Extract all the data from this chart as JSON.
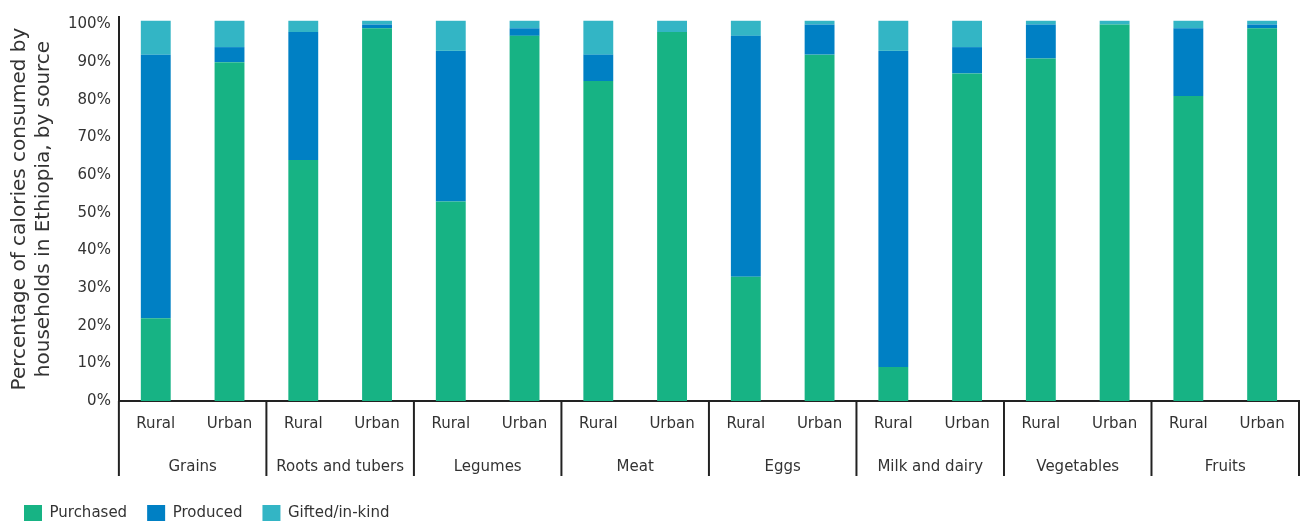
{
  "chart_data": {
    "type": "bar",
    "stacked": true,
    "ylabel": "Percentage of calories consumed by households in Ethiopia, by source",
    "categories": [
      "Rural",
      "Urban",
      "Rural",
      "Urban",
      "Rural",
      "Urban",
      "Rural",
      "Urban",
      "Rural",
      "Urban",
      "Rural",
      "Urban",
      "Rural",
      "Urban",
      "Rural",
      "Urban"
    ],
    "annotations": [
      "Grains",
      "Roots and tubers",
      "Legumes",
      "Meat",
      "Eggs",
      "Milk and dairy",
      "Vegetables",
      "Fruits"
    ],
    "series": [
      {
        "name": "Purchased",
        "color": "#17b384",
        "values": [
          22,
          90,
          64,
          99,
          53,
          97,
          85,
          98,
          33,
          92,
          9,
          87,
          91,
          100,
          81,
          99
        ]
      },
      {
        "name": "Produced",
        "color": "#0080c4",
        "values": [
          70,
          4,
          34,
          1,
          40,
          2,
          7,
          0,
          64,
          8,
          84,
          7,
          9,
          0,
          18,
          1
        ]
      },
      {
        "name": "Gifted/in-kind",
        "color": "#33b5c5",
        "values": [
          9,
          7,
          3,
          1,
          8,
          2,
          9,
          3,
          4,
          1,
          8,
          7,
          1,
          1,
          2,
          1
        ]
      }
    ],
    "ylim": [
      0,
      102
    ],
    "yticks": [
      {
        "value": 0,
        "label": "0%"
      },
      {
        "value": 10,
        "label": "10%"
      },
      {
        "value": 20,
        "label": "20%"
      },
      {
        "value": 30,
        "label": "30%"
      },
      {
        "value": 40,
        "label": "40%"
      },
      {
        "value": 50,
        "label": "50%"
      },
      {
        "value": 60,
        "label": "60%"
      },
      {
        "value": 70,
        "label": "70%"
      },
      {
        "value": 80,
        "label": "80%"
      },
      {
        "value": 90,
        "label": "90%"
      },
      {
        "value": 100,
        "label": "100%"
      }
    ],
    "grid": false,
    "legend": "bottom left"
  }
}
